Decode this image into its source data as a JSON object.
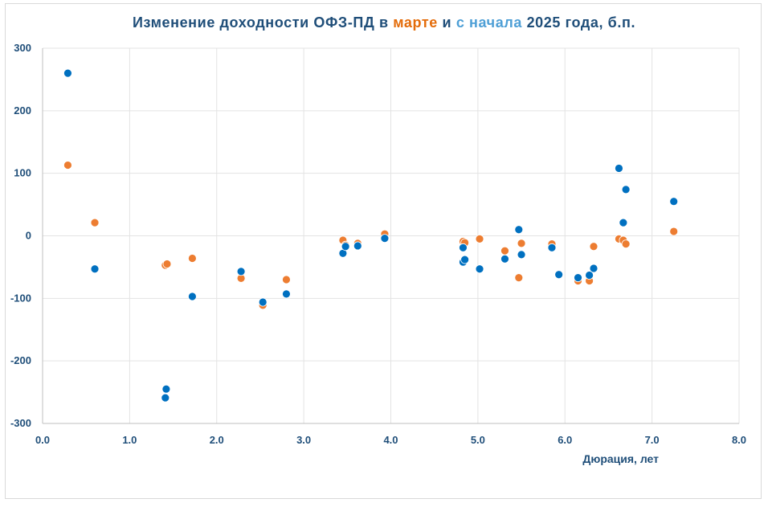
{
  "title": {
    "part1": "Изменение доходности ОФЗ-ПД в ",
    "part2": "марте",
    "part3": " и ",
    "part4": "с начала",
    "part5": " 2025 года, б.п."
  },
  "chart_data": {
    "type": "scatter",
    "xlabel": "Дюрация, лет",
    "ylabel": "",
    "xlim": [
      0.0,
      8.0
    ],
    "ylim": [
      -300,
      300
    ],
    "xticks": [
      "0.0",
      "1.0",
      "2.0",
      "3.0",
      "4.0",
      "5.0",
      "6.0",
      "7.0",
      "8.0"
    ],
    "yticks": [
      "300",
      "200",
      "100",
      "0",
      "-100",
      "-200",
      "-300"
    ],
    "grid": true,
    "legend": "none",
    "series": [
      {
        "color": "#ed7d31",
        "points": [
          [
            0.29,
            113
          ],
          [
            0.6,
            21
          ],
          [
            1.41,
            -47
          ],
          [
            1.43,
            -45
          ],
          [
            1.72,
            -36
          ],
          [
            2.28,
            -68
          ],
          [
            2.53,
            -111
          ],
          [
            2.8,
            -70
          ],
          [
            3.45,
            -7
          ],
          [
            3.48,
            -15
          ],
          [
            3.62,
            -12
          ],
          [
            3.93,
            3
          ],
          [
            4.83,
            -9
          ],
          [
            4.85,
            -11
          ],
          [
            5.02,
            -5
          ],
          [
            5.31,
            -24
          ],
          [
            5.47,
            -67
          ],
          [
            5.5,
            -12
          ],
          [
            5.85,
            -13
          ],
          [
            5.93,
            -62
          ],
          [
            6.15,
            -72
          ],
          [
            6.28,
            -72
          ],
          [
            6.33,
            -17
          ],
          [
            6.62,
            -5
          ],
          [
            6.67,
            -7
          ],
          [
            6.7,
            -13
          ],
          [
            7.25,
            7
          ]
        ]
      },
      {
        "color": "#0070c0",
        "points": [
          [
            0.29,
            260
          ],
          [
            0.6,
            -53
          ],
          [
            1.41,
            -259
          ],
          [
            1.42,
            -245
          ],
          [
            1.72,
            -97
          ],
          [
            2.28,
            -57
          ],
          [
            2.53,
            -106
          ],
          [
            2.8,
            -93
          ],
          [
            3.45,
            -28
          ],
          [
            3.48,
            -17
          ],
          [
            3.62,
            -16
          ],
          [
            3.93,
            -4
          ],
          [
            4.83,
            -19
          ],
          [
            4.83,
            -42
          ],
          [
            4.85,
            -38
          ],
          [
            5.02,
            -53
          ],
          [
            5.31,
            -37
          ],
          [
            5.47,
            10
          ],
          [
            5.5,
            -30
          ],
          [
            5.85,
            -19
          ],
          [
            5.93,
            -62
          ],
          [
            6.15,
            -67
          ],
          [
            6.28,
            -63
          ],
          [
            6.33,
            -52
          ],
          [
            6.62,
            108
          ],
          [
            6.67,
            21
          ],
          [
            6.7,
            74
          ],
          [
            7.25,
            55
          ]
        ]
      }
    ]
  },
  "colors": {
    "title": "#1f4e79",
    "title_marte": "#e46c0a",
    "title_snachala": "#4e9fd6",
    "grid": "#e3e3e3",
    "axis": "#bfbfbf"
  }
}
